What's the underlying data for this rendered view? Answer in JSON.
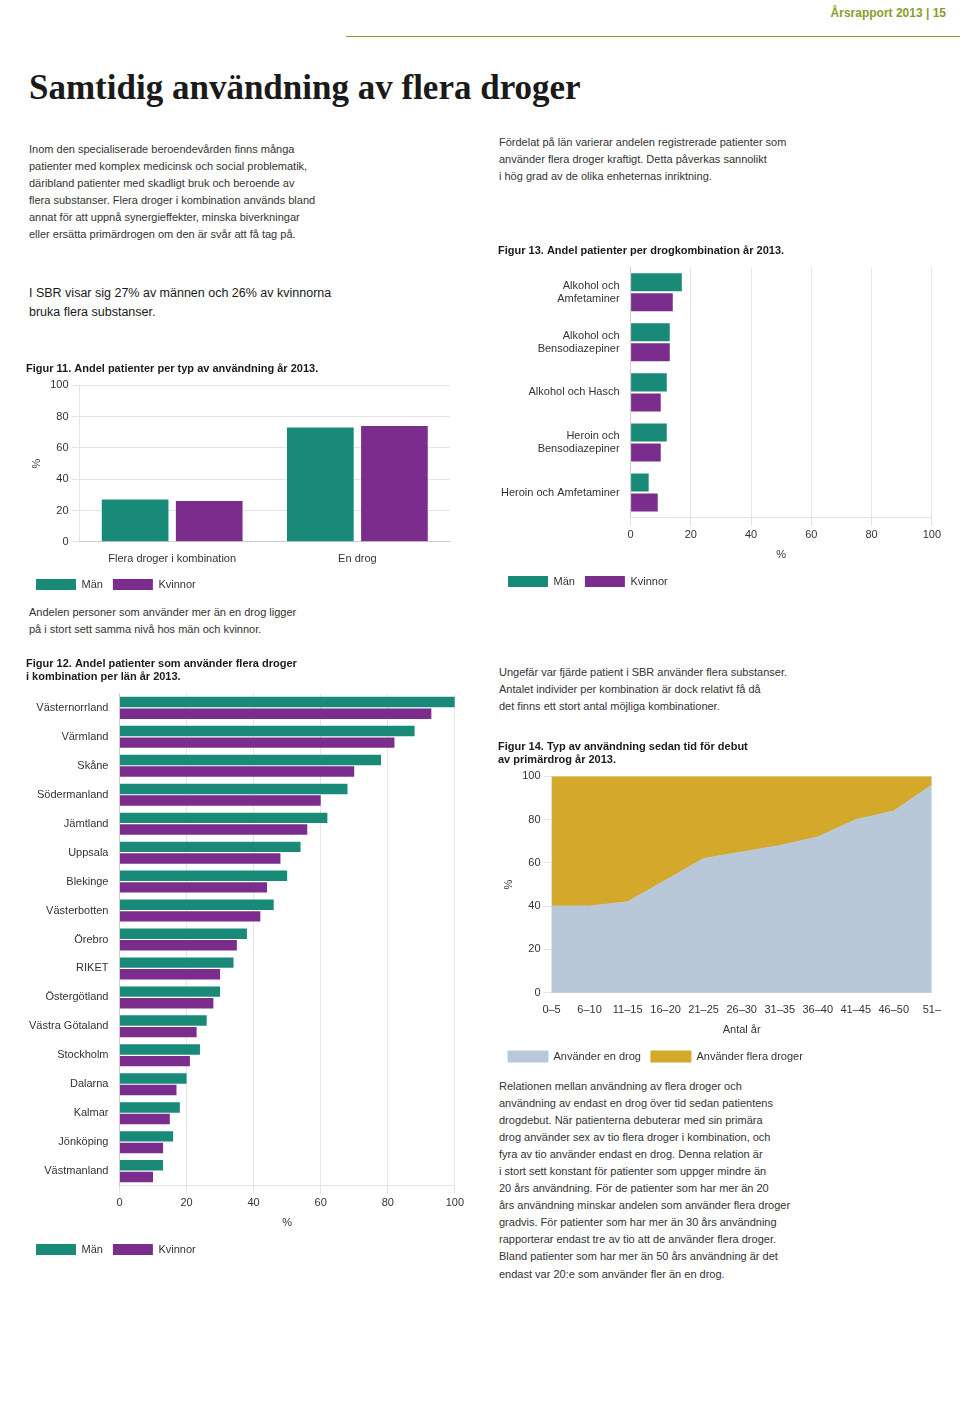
{
  "title": "Samtidig användning av flera droger",
  "annotations": [
    "Årsrapport 2013 | 15",
    "Inom den specialiserade beroendevården finns många\npatienter med komplex medicinsk och social problematik,\ndäribland patienter med skadligt bruk och beroende av\nflera substanser. Flera droger i kombination används bland\nannat för att uppnå synergieffekter, minska biverkningar\neller ersätta primärdrogen om den är svår att få tag på.",
    "Fördelat på län varierar andelen registrerade patienter som\nanvänder flera droger kraftigt. Detta påverkas sannolikt\ni hög grad av de olika enheternas inriktning.",
    "I SBR visar sig 27% av männen och 26% av kvinnorna\nbruka flera substanser.",
    "Andelen personer som använder mer än en drog ligger\npå i stort sett samma nivå hos män och kvinnor.",
    "Ungefär var fjärde patient i SBR använder flera substanser.\nAntalet individer per kombination är dock relativt få då\ndet finns ett stort antal möjliga kombinationer.",
    "Relationen mellan användning av flera droger och\nanvändning av endast en drog över tid sedan patientens\ndrogdebut. När patienterna debuterar med sin primära\ndrog använder sex av tio flera droger i kombination, och\nfyra av tio använder endast en drog. Denna relation är\ni stort sett konstant för patienter som uppger mindre än\n20 års användning. För de patienter som har mer än 20\nårs användning minskar andelen som använder flera droger\ngradvis. För patienter som har mer än 30 års användning\nrapporterar endast tre av tio att de använder flera droger.\nBland patienter som har mer än 50 års användning är det\nendast var 20:e som använder fler än en drog."
  ],
  "chart_data": [
    {
      "type": "bar",
      "title": "Figur 11. Andel patienter per typ av användning år 2013.",
      "categories": [
        "Flera droger i kombination",
        "En drog"
      ],
      "series": [
        {
          "name": "Män",
          "color": "#1a8a78",
          "values": [
            27,
            73
          ]
        },
        {
          "name": "Kvinnor",
          "color": "#7a2d8c",
          "values": [
            26,
            74
          ]
        }
      ],
      "ylabel": "%",
      "ylim": [
        0,
        100
      ],
      "yticks": [
        0,
        20,
        40,
        60,
        80,
        100
      ],
      "grid": true,
      "legend": "lower left"
    },
    {
      "type": "bar",
      "orientation": "horizontal",
      "title": "Figur 12. Andel patienter som använder flera droger\ni kombination per län år 2013.",
      "categories": [
        "Västernorrland",
        "Värmland",
        "Skåne",
        "Södermanland",
        "Jämtland",
        "Uppsala",
        "Blekinge",
        "Västerbotten",
        "Örebro",
        "RIKET",
        "Östergötland",
        "Västra Götaland",
        "Stockholm",
        "Dalarna",
        "Kalmar",
        "Jönköping",
        "Västmanland"
      ],
      "series": [
        {
          "name": "Män",
          "color": "#1a8a78",
          "values": [
            100,
            88,
            78,
            68,
            62,
            54,
            50,
            46,
            38,
            34,
            30,
            26,
            24,
            20,
            18,
            16,
            13
          ]
        },
        {
          "name": "Kvinnor",
          "color": "#7a2d8c",
          "values": [
            93,
            82,
            70,
            60,
            56,
            48,
            44,
            42,
            35,
            30,
            28,
            23,
            21,
            17,
            15,
            13,
            10
          ]
        }
      ],
      "xlabel": "%",
      "xlim": [
        0,
        100
      ],
      "xticks": [
        0,
        20,
        40,
        60,
        80,
        100
      ],
      "grid": true,
      "legend": "lower left"
    },
    {
      "type": "bar",
      "orientation": "horizontal",
      "title": "Figur 13. Andel patienter per drogkombination år 2013.",
      "categories": [
        "Alkohol och\nAmfetaminer",
        "Alkohol och\nBensodiazepiner",
        "Alkohol och Hasch",
        "Heroin och\nBensodiazepiner",
        "Heroin och Amfetaminer"
      ],
      "series": [
        {
          "name": "Män",
          "color": "#1a8a78",
          "values": [
            17,
            13,
            12,
            12,
            6
          ]
        },
        {
          "name": "Kvinnor",
          "color": "#7a2d8c",
          "values": [
            14,
            13,
            10,
            10,
            9
          ]
        }
      ],
      "xlabel": "%",
      "xlim": [
        0,
        100
      ],
      "xticks": [
        0,
        20,
        40,
        60,
        80,
        100
      ],
      "grid": true,
      "legend": "lower left"
    },
    {
      "type": "area",
      "stacked": true,
      "title": "Figur 14. Typ av användning sedan tid för debut\nav primärdrog år 2013.",
      "categories": [
        "0–5",
        "6–10",
        "11–15",
        "16–20",
        "21–25",
        "26–30",
        "31–35",
        "36–40",
        "41–45",
        "46–50",
        "51–"
      ],
      "series": [
        {
          "name": "Använder en drog",
          "color": "#b8c8d8",
          "values": [
            40,
            40,
            42,
            52,
            62,
            65,
            68,
            72,
            80,
            84,
            96
          ]
        },
        {
          "name": "Använder flera droger",
          "color": "#d4a82a",
          "values": [
            60,
            60,
            58,
            48,
            38,
            35,
            32,
            28,
            20,
            16,
            4
          ]
        }
      ],
      "xlabel": "Antal år",
      "ylabel": "%",
      "ylim": [
        0,
        100
      ],
      "yticks": [
        0,
        20,
        40,
        60,
        80,
        100
      ],
      "grid": true,
      "legend": "lower left"
    }
  ]
}
